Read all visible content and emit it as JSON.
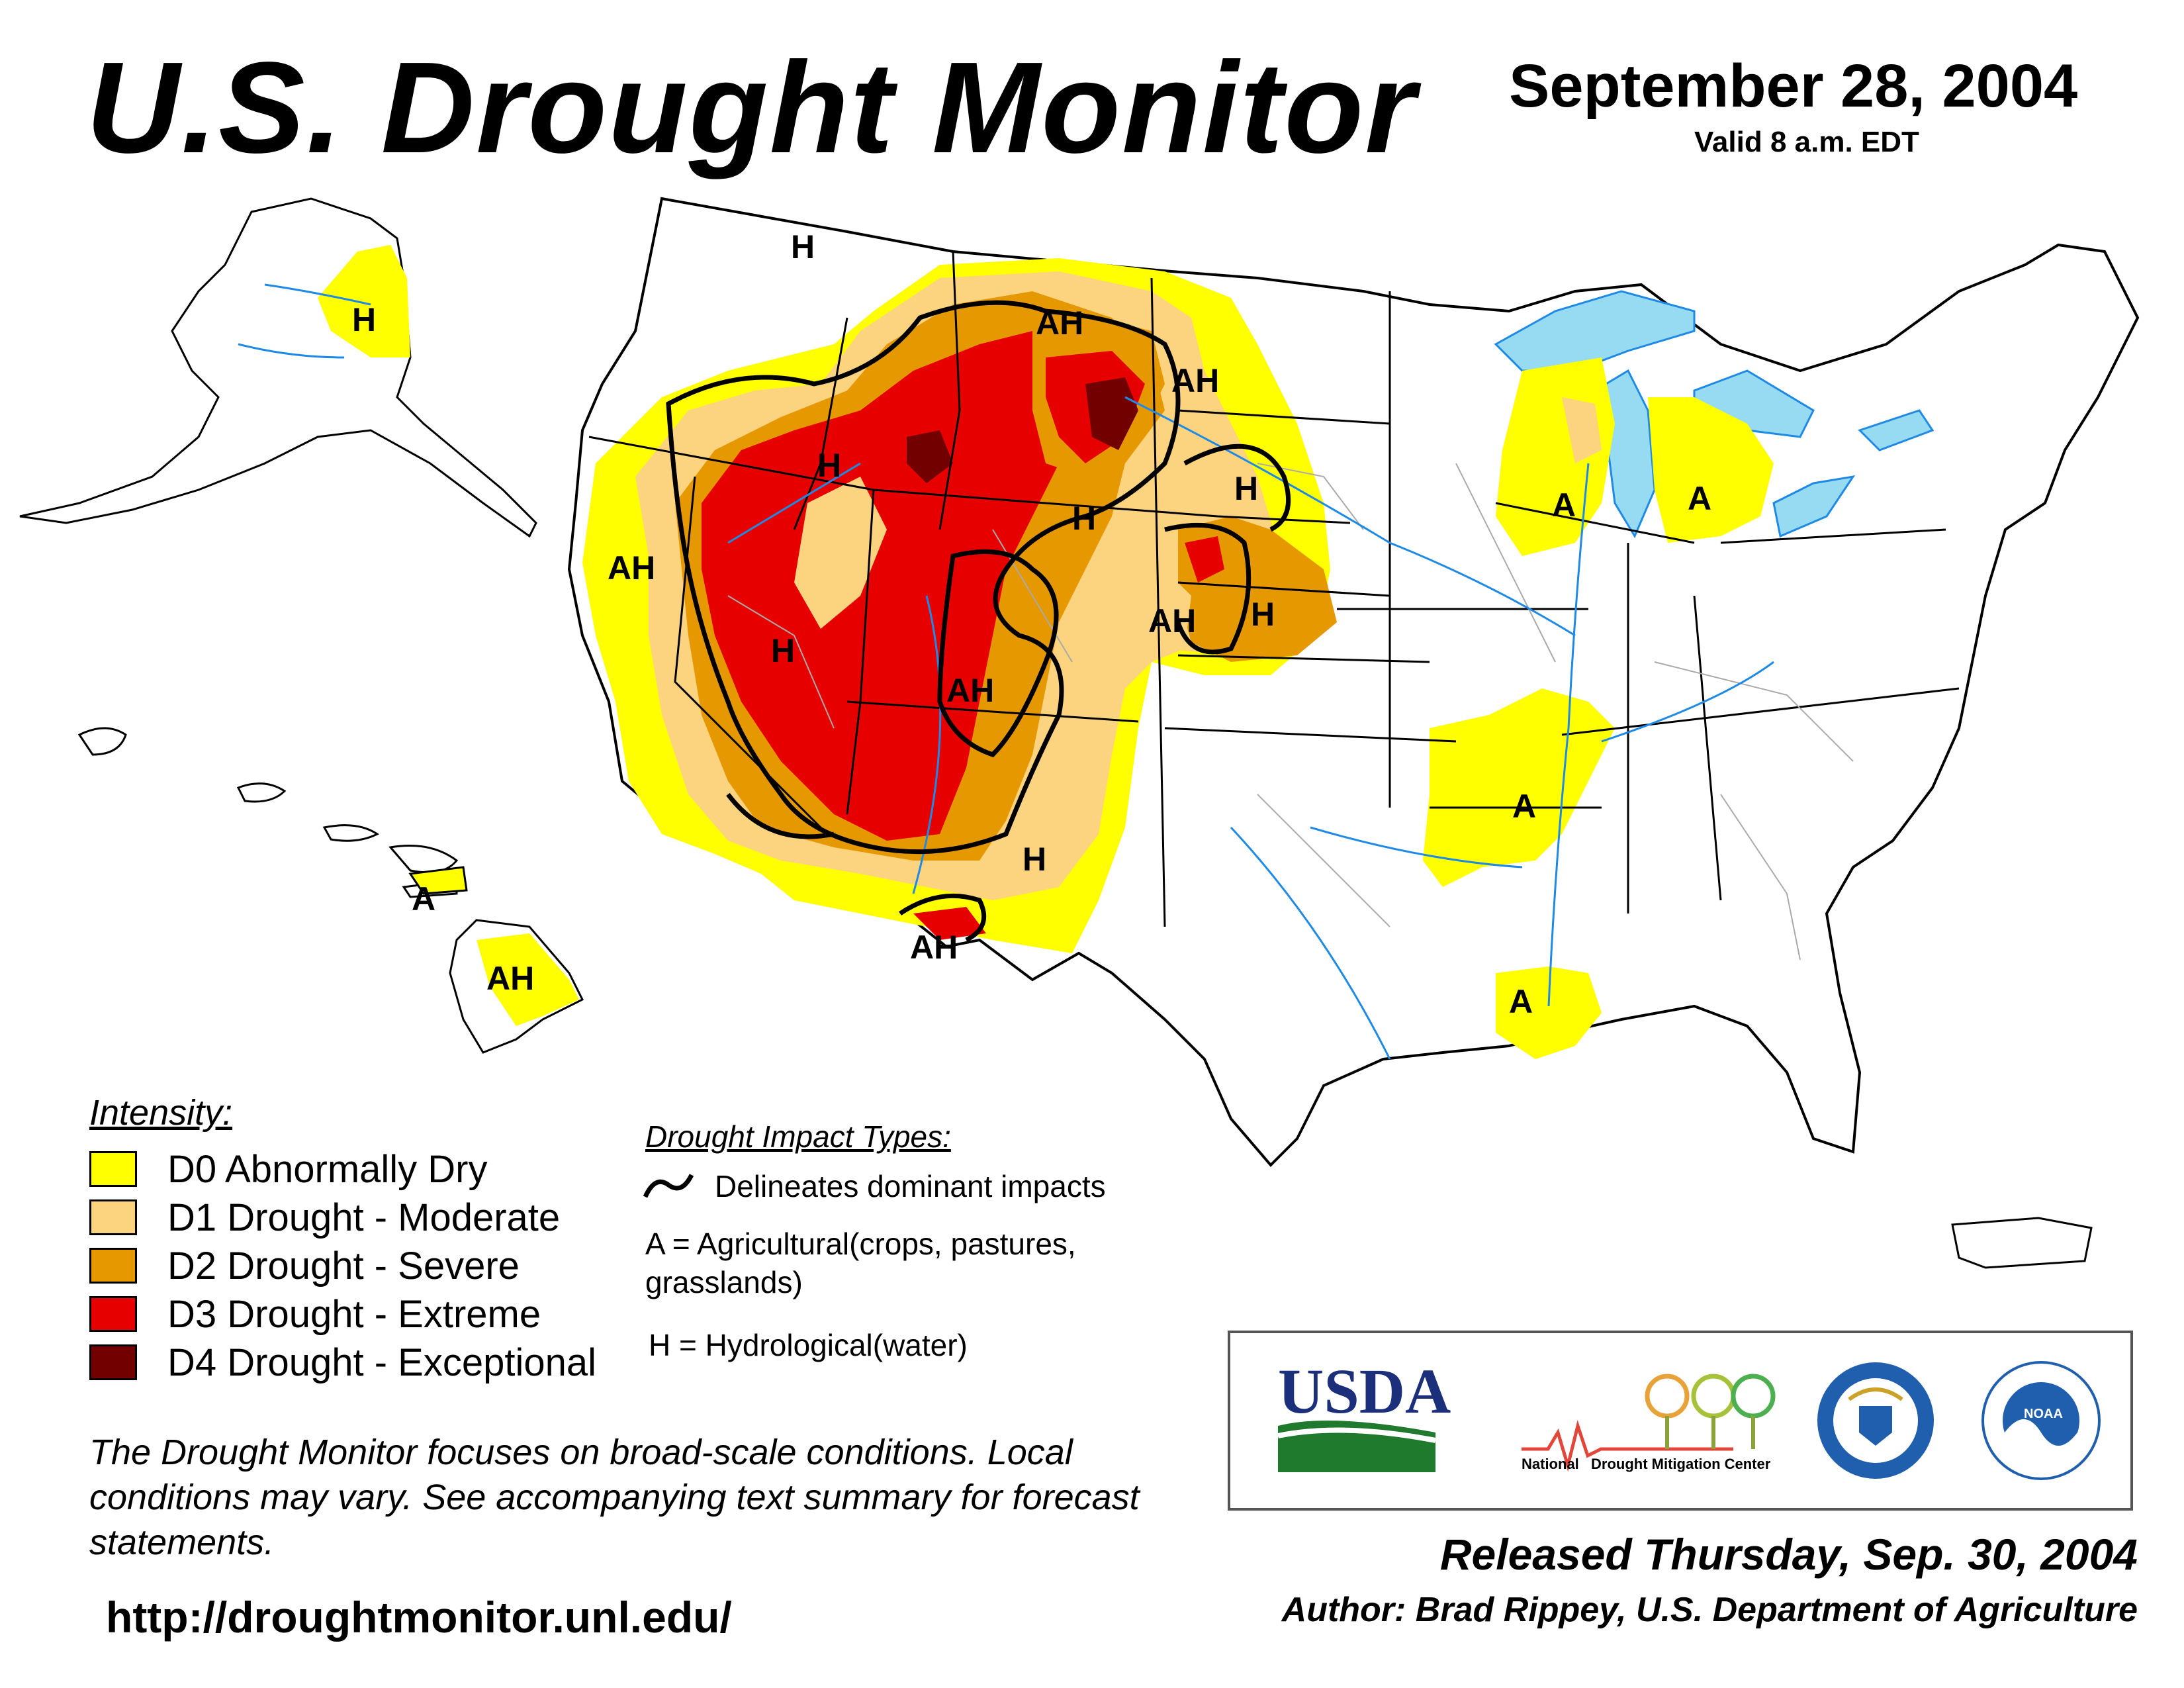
{
  "header": {
    "title": "U.S. Drought Monitor",
    "date": "September 28, 2004",
    "valid": "Valid 8 a.m. EDT"
  },
  "colors": {
    "D0": "#ffff00",
    "D1": "#fcd37f",
    "D2": "#e69800",
    "D3": "#e60000",
    "D4": "#730000",
    "water": "#97dbf2",
    "rivers": "#1f8ae6",
    "boundaries": "#999999"
  },
  "legend": {
    "title": "Intensity:",
    "items": [
      {
        "code": "D0",
        "label": "D0 Abnormally Dry",
        "color": "#ffff00"
      },
      {
        "code": "D1",
        "label": "D1 Drought - Moderate",
        "color": "#fcd37f"
      },
      {
        "code": "D2",
        "label": "D2 Drought - Severe",
        "color": "#e69800"
      },
      {
        "code": "D3",
        "label": "D3 Drought - Extreme",
        "color": "#e60000"
      },
      {
        "code": "D4",
        "label": "D4 Drought - Exceptional",
        "color": "#730000"
      }
    ]
  },
  "impacts": {
    "title": "Drought Impact Types:",
    "delineates": "Delineates dominant impacts",
    "agricultural": "A = Agricultural(crops, pastures, grasslands)",
    "hydrological": "H = Hydrological(water)"
  },
  "map_labels": {
    "alaska": "H",
    "hawaii_maui": "A",
    "hawaii_big": "AH",
    "n_idaho": "H",
    "montana": "AH",
    "n_dakota": "AH",
    "s_dakota": "H",
    "idaho": "H",
    "wyoming": "H",
    "california": "AH",
    "nevada": "H",
    "colorado_w": "AH",
    "nebraska_w": "AH",
    "nebraska_e": "H",
    "new_mexico": "H",
    "az_nm_border": "AH",
    "wisconsin": "A",
    "michigan": "A",
    "arkansas": "A",
    "louisiana": "A"
  },
  "disclaimer": "The Drought Monitor focuses on broad-scale conditions. Local conditions may vary. See accompanying text summary for forecast statements.",
  "url": "http://droughtmonitor.unl.edu/",
  "logos": {
    "usda": "USDA",
    "ndmc_national": "National",
    "ndmc_center": "Drought Mitigation Center",
    "commerce_seal": "department-of-commerce-seal",
    "noaa": "NOAA"
  },
  "footer": {
    "released": "Released Thursday, Sep. 30, 2004",
    "author": "Author: Brad Rippey, U.S. Department of Agriculture"
  }
}
